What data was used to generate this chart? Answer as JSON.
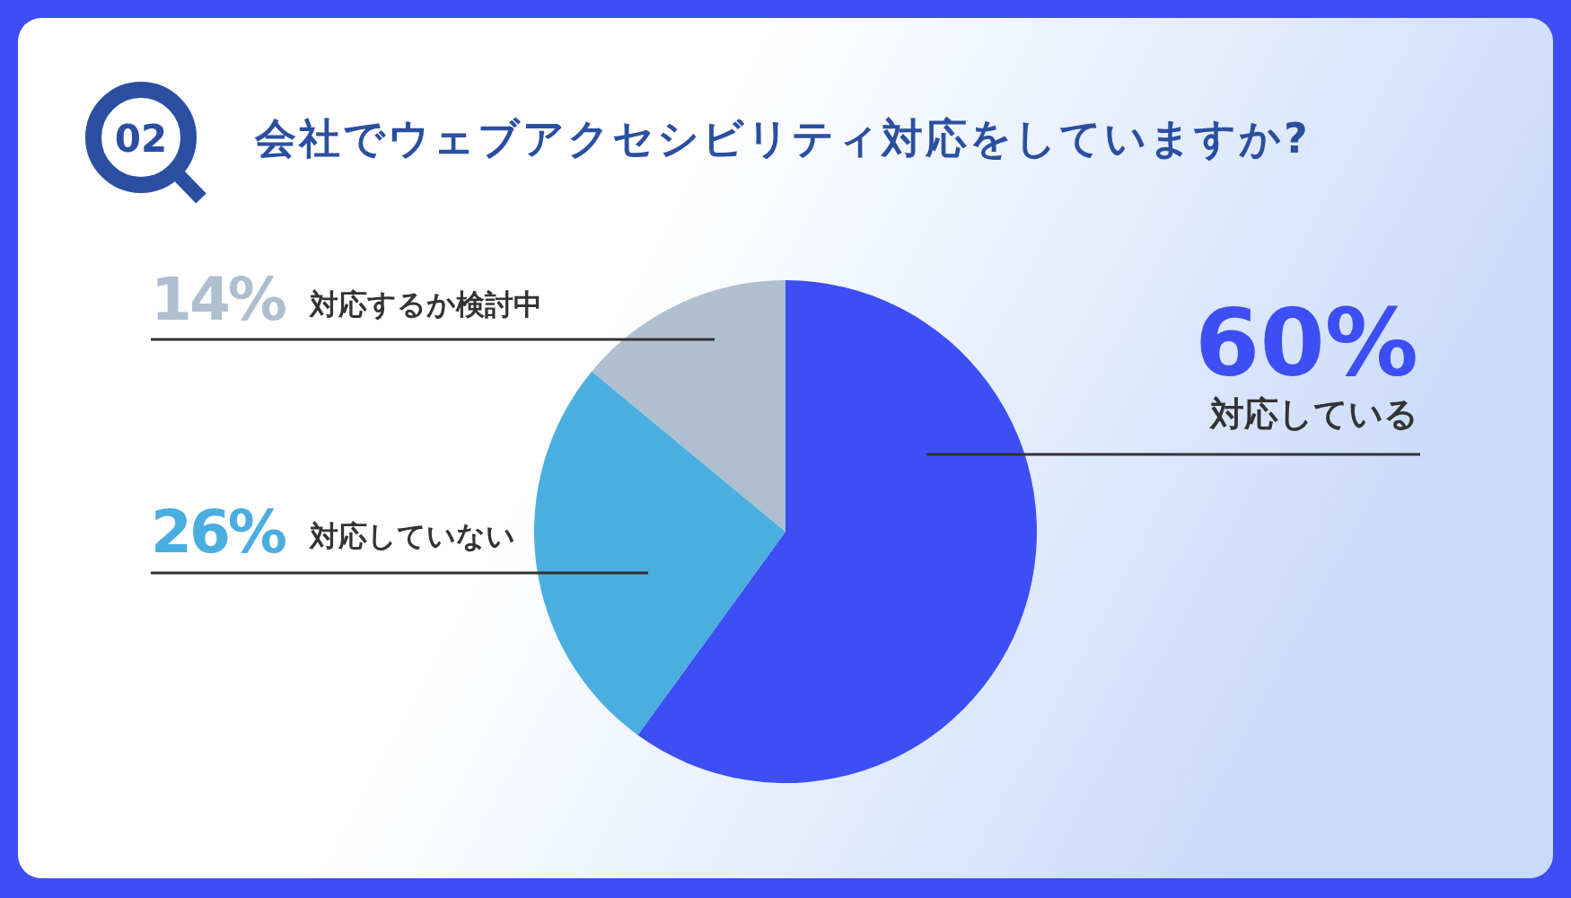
{
  "chart_data": {
    "type": "pie",
    "title": "会社でウェブアクセシビリティ対応をしていますか?",
    "categories": [
      "対応している",
      "対応していない",
      "対応するか検討中"
    ],
    "values": [
      60,
      26,
      14
    ],
    "value_labels": [
      "60%",
      "26%",
      "14%"
    ],
    "colors": [
      "#3d4ef5",
      "#4aaee0",
      "#aebfd0"
    ],
    "annotations": [
      "02"
    ]
  }
}
